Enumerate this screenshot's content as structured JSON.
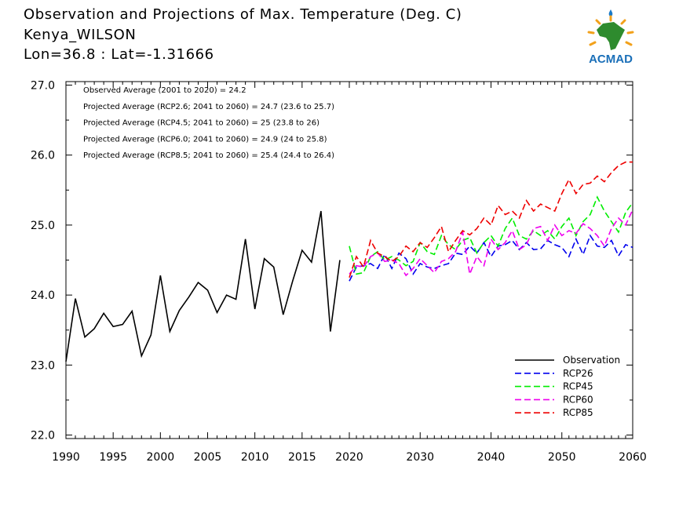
{
  "header": {
    "title": "Observation and Projections of Max. Temperature (Deg. C)",
    "station": "Kenya_WILSON",
    "location": "Lon=36.8 : Lat=-1.31666"
  },
  "logo": {
    "text": "ACMAD",
    "icon": "africa-map-logo-icon"
  },
  "chart_data": {
    "type": "line",
    "xlim": [
      1990,
      2060
    ],
    "ylim": [
      21.95,
      27.05
    ],
    "xticks": [
      1990,
      1995,
      2000,
      2005,
      2010,
      2015,
      2020,
      2030,
      2040,
      2050,
      2060
    ],
    "yticks": [
      22.0,
      23.0,
      24.0,
      25.0,
      26.0,
      27.0
    ],
    "ytick_labels": [
      "22.0",
      "23.0",
      "24.0",
      "25.0",
      "26.0",
      "27.0"
    ],
    "grid": false,
    "legend_position": "bottom-right",
    "annotations": [
      "Observed Average (2001 to 2020) = 24.2",
      "Projected Average (RCP2.6; 2041 to 2060) = 24.7 (23.6 to 25.7)",
      "Projected Average (RCP4.5; 2041 to 2060) = 25 (23.8 to 26)",
      "Projected Average (RCP6.0; 2041 to 2060) = 24.9 (24 to 25.8)",
      "Projected Average (RCP8.5; 2041 to 2060) = 25.4 (24.4 to 26.4)"
    ],
    "series": [
      {
        "name": "Observation",
        "color": "#000000",
        "dash": "solid",
        "start": 1990,
        "values": [
          23.05,
          23.95,
          23.4,
          23.52,
          23.74,
          23.55,
          23.58,
          23.77,
          23.13,
          23.43,
          24.28,
          23.48,
          23.78,
          23.97,
          24.18,
          24.07,
          23.75,
          24.0,
          23.94,
          24.8,
          23.8,
          24.52,
          24.4,
          23.72,
          24.2,
          24.64,
          24.47,
          25.2,
          23.48,
          24.5
        ]
      },
      {
        "name": "RCP26",
        "color": "#0000ee",
        "dash": "dashed",
        "start": 2020,
        "values": [
          24.2,
          24.4,
          24.42,
          24.45,
          24.38,
          24.58,
          24.38,
          24.6,
          24.52,
          24.3,
          24.45,
          24.4,
          24.38,
          24.42,
          24.45,
          24.6,
          24.58,
          24.7,
          24.6,
          24.75,
          24.55,
          24.7,
          24.72,
          24.78,
          24.65,
          24.75,
          24.65,
          24.66,
          24.78,
          24.72,
          24.68,
          24.55,
          24.8,
          24.58,
          24.85,
          24.7,
          24.68,
          24.78,
          24.56,
          24.72,
          24.68
        ]
      },
      {
        "name": "RCP45",
        "color": "#00ee00",
        "dash": "dashed",
        "start": 2020,
        "values": [
          24.7,
          24.3,
          24.32,
          24.55,
          24.62,
          24.5,
          24.55,
          24.5,
          24.42,
          24.48,
          24.75,
          24.62,
          24.58,
          24.85,
          24.72,
          24.65,
          24.78,
          24.82,
          24.6,
          24.75,
          24.85,
          24.7,
          24.95,
          25.1,
          24.85,
          24.8,
          24.92,
          24.85,
          24.92,
          24.8,
          24.98,
          25.1,
          24.85,
          25.05,
          25.15,
          25.4,
          25.2,
          25.05,
          24.9,
          25.18,
          25.32
        ]
      },
      {
        "name": "RCP60",
        "color": "#ee00ee",
        "dash": "dashed",
        "start": 2020,
        "values": [
          24.3,
          24.42,
          24.4,
          24.55,
          24.6,
          24.48,
          24.5,
          24.45,
          24.28,
          24.38,
          24.52,
          24.42,
          24.32,
          24.48,
          24.52,
          24.62,
          24.9,
          24.3,
          24.55,
          24.42,
          24.8,
          24.65,
          24.75,
          24.92,
          24.65,
          24.72,
          24.95,
          24.98,
          24.78,
          25.0,
          24.85,
          24.92,
          24.88,
          25.02,
          24.95,
          24.85,
          24.7,
          24.95,
          25.1,
          25.0,
          25.22
        ]
      },
      {
        "name": "RCP85",
        "color": "#ee0000",
        "dash": "dashed",
        "start": 2020,
        "values": [
          24.25,
          24.55,
          24.4,
          24.78,
          24.6,
          24.55,
          24.48,
          24.55,
          24.7,
          24.62,
          24.75,
          24.68,
          24.82,
          24.98,
          24.62,
          24.78,
          24.92,
          24.86,
          24.95,
          25.1,
          25.0,
          25.28,
          25.15,
          25.2,
          25.1,
          25.35,
          25.2,
          25.3,
          25.25,
          25.2,
          25.45,
          25.65,
          25.45,
          25.58,
          25.6,
          25.7,
          25.62,
          25.75,
          25.85,
          25.9,
          25.9
        ]
      }
    ]
  }
}
